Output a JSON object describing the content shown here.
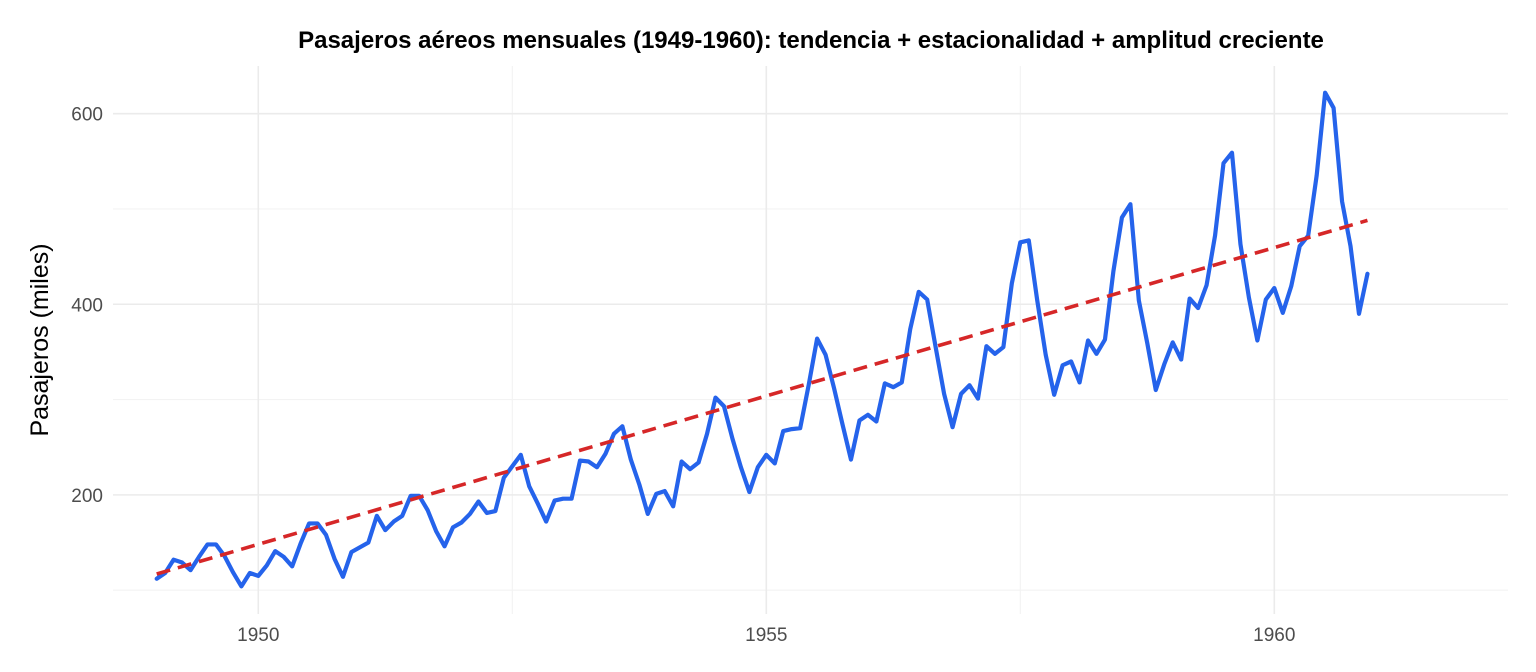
{
  "chart_data": {
    "type": "line",
    "title": "Pasajeros aéreos mensuales (1949-1960): tendencia + estacionalidad + amplitud creciente",
    "xlabel": "",
    "ylabel": "Pasajeros (miles)",
    "x_ticks": [
      1950,
      1955,
      1960
    ],
    "y_ticks": [
      200,
      400,
      600
    ],
    "xlim": [
      1948.57,
      1962.3
    ],
    "ylim": [
      75,
      650
    ],
    "grid": true,
    "legend": "none",
    "series": [
      {
        "kind": "observed",
        "color": "#2563eb",
        "x_start": 1949,
        "x_step": 0.0833333,
        "values": [
          112,
          118,
          132,
          129,
          121,
          135,
          148,
          148,
          136,
          119,
          104,
          118,
          115,
          126,
          141,
          135,
          125,
          149,
          170,
          170,
          158,
          133,
          114,
          140,
          145,
          150,
          178,
          163,
          172,
          178,
          199,
          199,
          184,
          162,
          146,
          166,
          171,
          180,
          193,
          181,
          183,
          218,
          230,
          242,
          209,
          191,
          172,
          194,
          196,
          196,
          236,
          235,
          229,
          243,
          264,
          272,
          237,
          211,
          180,
          201,
          204,
          188,
          235,
          227,
          234,
          264,
          302,
          293,
          259,
          229,
          203,
          229,
          242,
          233,
          267,
          269,
          270,
          315,
          364,
          347,
          312,
          274,
          237,
          278,
          284,
          277,
          317,
          313,
          318,
          374,
          413,
          405,
          355,
          306,
          271,
          306,
          315,
          301,
          356,
          348,
          355,
          422,
          465,
          467,
          404,
          347,
          305,
          336,
          340,
          318,
          362,
          348,
          363,
          435,
          491,
          505,
          404,
          359,
          310,
          337,
          360,
          342,
          406,
          396,
          420,
          472,
          548,
          559,
          463,
          407,
          362,
          405,
          417,
          391,
          419,
          461,
          472,
          535,
          622,
          606,
          508,
          461,
          390,
          432
        ]
      },
      {
        "kind": "trend",
        "color": "#d62728",
        "dash": "dashed",
        "x": [
          1949,
          1960.9167
        ],
        "values": [
          117,
          488
        ]
      }
    ]
  }
}
